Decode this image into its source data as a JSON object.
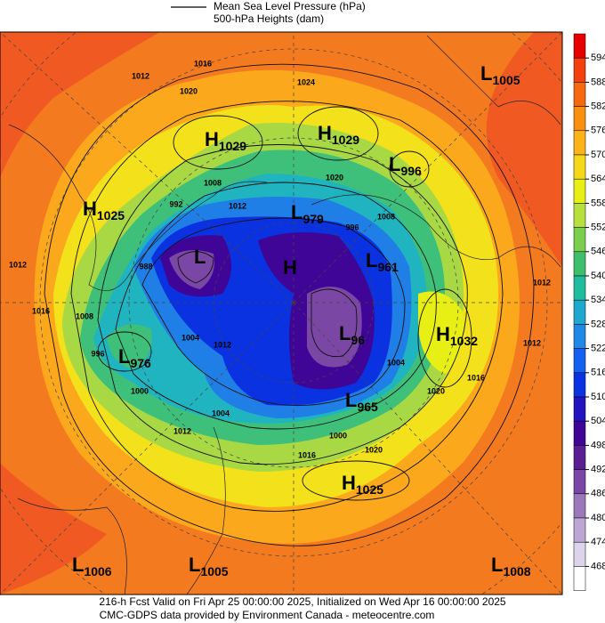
{
  "legend": {
    "line1": "Mean Sea Level Pressure (hPa)",
    "line2": "500-hPa Heights (dam)"
  },
  "colorbar": {
    "ticks": [
      594,
      588,
      582,
      576,
      570,
      564,
      558,
      552,
      546,
      540,
      534,
      528,
      522,
      516,
      510,
      504,
      498,
      492,
      486,
      480,
      474,
      468
    ],
    "colors": [
      "#e60000",
      "#f2400e",
      "#f7690f",
      "#fb8f10",
      "#fcb318",
      "#f6d81a",
      "#e8ef14",
      "#b8e03c",
      "#7ccf4e",
      "#3fbf6c",
      "#1fbd9e",
      "#1fa8cf",
      "#2088e6",
      "#1460f0",
      "#0a32e0",
      "#2212c0",
      "#3e0596",
      "#5a1e92",
      "#7a48a4",
      "#9c78ba",
      "#bea6d4",
      "#ddd4ec",
      "#ffffff"
    ]
  },
  "systems": [
    {
      "letter": "L",
      "value": "1005"
    },
    {
      "letter": "H",
      "value": "1029"
    },
    {
      "letter": "H",
      "value": "1029"
    },
    {
      "letter": "L",
      "value": "996"
    },
    {
      "letter": "H",
      "value": "1025"
    },
    {
      "letter": "L",
      "value": "979"
    },
    {
      "letter": "L"
    },
    {
      "letter": "H"
    },
    {
      "letter": "L",
      "value": "961"
    },
    {
      "letter": "L",
      "value": "96"
    },
    {
      "letter": "H",
      "value": "1032"
    },
    {
      "letter": "L",
      "value": "976"
    },
    {
      "letter": "L",
      "value": "965"
    },
    {
      "letter": "H",
      "value": "1025"
    },
    {
      "letter": "L",
      "value": "1006"
    },
    {
      "letter": "L",
      "value": "1005"
    },
    {
      "letter": "L",
      "value": "1008"
    }
  ],
  "contour_labels": [
    1016,
    1012,
    1020,
    1024,
    1020,
    1008,
    1012,
    1008,
    992,
    996,
    1012,
    1016,
    1008,
    996,
    1012,
    1004,
    1000,
    1012,
    1004,
    1000,
    1016,
    1020,
    1004,
    1020,
    1016,
    1012,
    1012,
    988
  ],
  "footer": {
    "line1": "216-h Fcst Valid on Fri Apr 25 00:00:00 2025, Initialized on Wed Apr 16 00:00:00 2025",
    "line2": "CMC-GDPS data provided by Environment Canada - meteocentre.com"
  }
}
